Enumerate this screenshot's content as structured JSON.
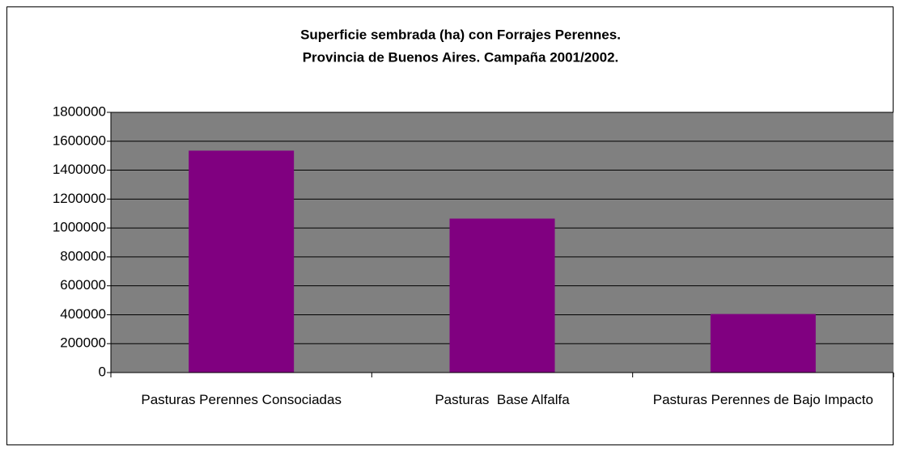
{
  "chart_data": {
    "type": "bar",
    "title": [
      "Superficie sembrada (ha) con Forrajes Perennes.",
      "Provincia de Buenos Aires. Campaña 2001/2002."
    ],
    "categories": [
      "Pasturas Perennes Consociadas",
      "Pasturas  Base Alfalfa",
      "Pasturas Perennes de Bajo Impacto"
    ],
    "values": [
      1535000,
      1065000,
      405000
    ],
    "color": "#800080",
    "ylim": [
      0,
      1800000
    ],
    "yticks": [
      0,
      200000,
      400000,
      600000,
      800000,
      1000000,
      1200000,
      1400000,
      1600000,
      1800000
    ],
    "grid": true
  }
}
